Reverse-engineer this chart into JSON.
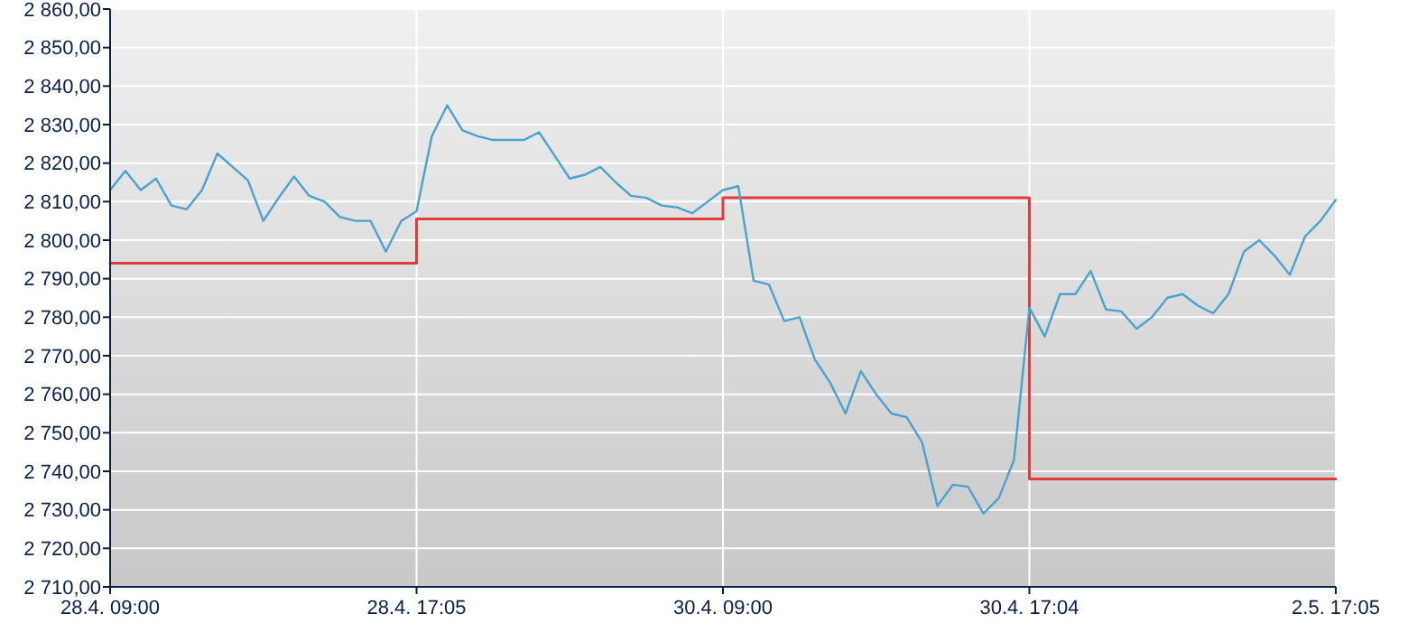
{
  "chart_data": {
    "type": "line",
    "ylim": [
      2710,
      2860
    ],
    "categories": [
      "28.4. 09:00",
      null,
      null,
      null,
      null,
      null,
      null,
      null,
      null,
      null,
      null,
      null,
      null,
      null,
      null,
      null,
      null,
      null,
      null,
      null,
      "28.4. 17:05",
      null,
      null,
      null,
      null,
      null,
      null,
      null,
      null,
      null,
      null,
      null,
      null,
      null,
      null,
      null,
      null,
      null,
      null,
      null,
      "30.4. 09:00",
      null,
      null,
      null,
      null,
      null,
      null,
      null,
      null,
      null,
      null,
      null,
      null,
      null,
      null,
      null,
      null,
      null,
      null,
      null,
      "30.4. 17:04",
      null,
      null,
      null,
      null,
      null,
      null,
      null,
      null,
      null,
      null,
      null,
      null,
      null,
      null,
      null,
      null,
      null,
      null,
      null,
      "2.5. 17:05"
    ],
    "yticks": [
      {
        "value": 2710,
        "label": "2 710,00"
      },
      {
        "value": 2720,
        "label": "2 720,00"
      },
      {
        "value": 2730,
        "label": "2 730,00"
      },
      {
        "value": 2740,
        "label": "2 740,00"
      },
      {
        "value": 2750,
        "label": "2 750,00"
      },
      {
        "value": 2760,
        "label": "2 760,00"
      },
      {
        "value": 2770,
        "label": "2 770,00"
      },
      {
        "value": 2780,
        "label": "2 780,00"
      },
      {
        "value": 2790,
        "label": "2 790,00"
      },
      {
        "value": 2800,
        "label": "2 800,00"
      },
      {
        "value": 2810,
        "label": "2 810,00"
      },
      {
        "value": 2820,
        "label": "2 820,00"
      },
      {
        "value": 2830,
        "label": "2 830,00"
      },
      {
        "value": 2840,
        "label": "2 840,00"
      },
      {
        "value": 2850,
        "label": "2 850,00"
      },
      {
        "value": 2860,
        "label": "2 860,00"
      }
    ],
    "grid": true,
    "marker": "none",
    "line_style": "solid",
    "series": [
      {
        "type": "line",
        "color": "#4aa3cf",
        "values": [
          2813,
          2818,
          2813,
          2816,
          2809,
          2808,
          2813,
          2822.5,
          2819,
          2815.5,
          2805,
          2811,
          2816.5,
          2811.5,
          2810,
          2806,
          2805,
          2805,
          2797,
          2805,
          2807.5,
          2827,
          2835,
          2828.5,
          2827,
          2826,
          2826,
          2826,
          2828,
          2822,
          2816,
          2817,
          2819,
          2815,
          2811.5,
          2811,
          2809,
          2808.5,
          2807,
          2810,
          2813,
          2814,
          2789.5,
          2788.5,
          2779,
          2780,
          2769,
          2763,
          2755,
          2766,
          2760,
          2755,
          2754,
          2747.5,
          2731,
          2736.5,
          2736,
          2729,
          2733,
          2743,
          2782.5,
          2775,
          2786,
          2786,
          2792,
          2782,
          2781.5,
          2777,
          2780,
          2785,
          2786,
          2783,
          2781,
          2786,
          2797,
          2800,
          2796,
          2791,
          2801,
          2805,
          2810.5
        ]
      },
      {
        "type": "step",
        "color": "#e03c3c",
        "values": [
          2794,
          2794,
          2794,
          2794,
          2794,
          2794,
          2794,
          2794,
          2794,
          2794,
          2794,
          2794,
          2794,
          2794,
          2794,
          2794,
          2794,
          2794,
          2794,
          2794,
          2805.5,
          2805.5,
          2805.5,
          2805.5,
          2805.5,
          2805.5,
          2805.5,
          2805.5,
          2805.5,
          2805.5,
          2805.5,
          2805.5,
          2805.5,
          2805.5,
          2805.5,
          2805.5,
          2805.5,
          2805.5,
          2805.5,
          2805.5,
          2811,
          2811,
          2811,
          2811,
          2811,
          2811,
          2811,
          2811,
          2811,
          2811,
          2811,
          2811,
          2811,
          2811,
          2811,
          2811,
          2811,
          2811,
          2811,
          2811,
          2738,
          2738,
          2738,
          2738,
          2738,
          2738,
          2738,
          2738,
          2738,
          2738,
          2738,
          2738,
          2738,
          2738,
          2738,
          2738,
          2738,
          2738,
          2738,
          2738,
          2738
        ]
      }
    ]
  }
}
